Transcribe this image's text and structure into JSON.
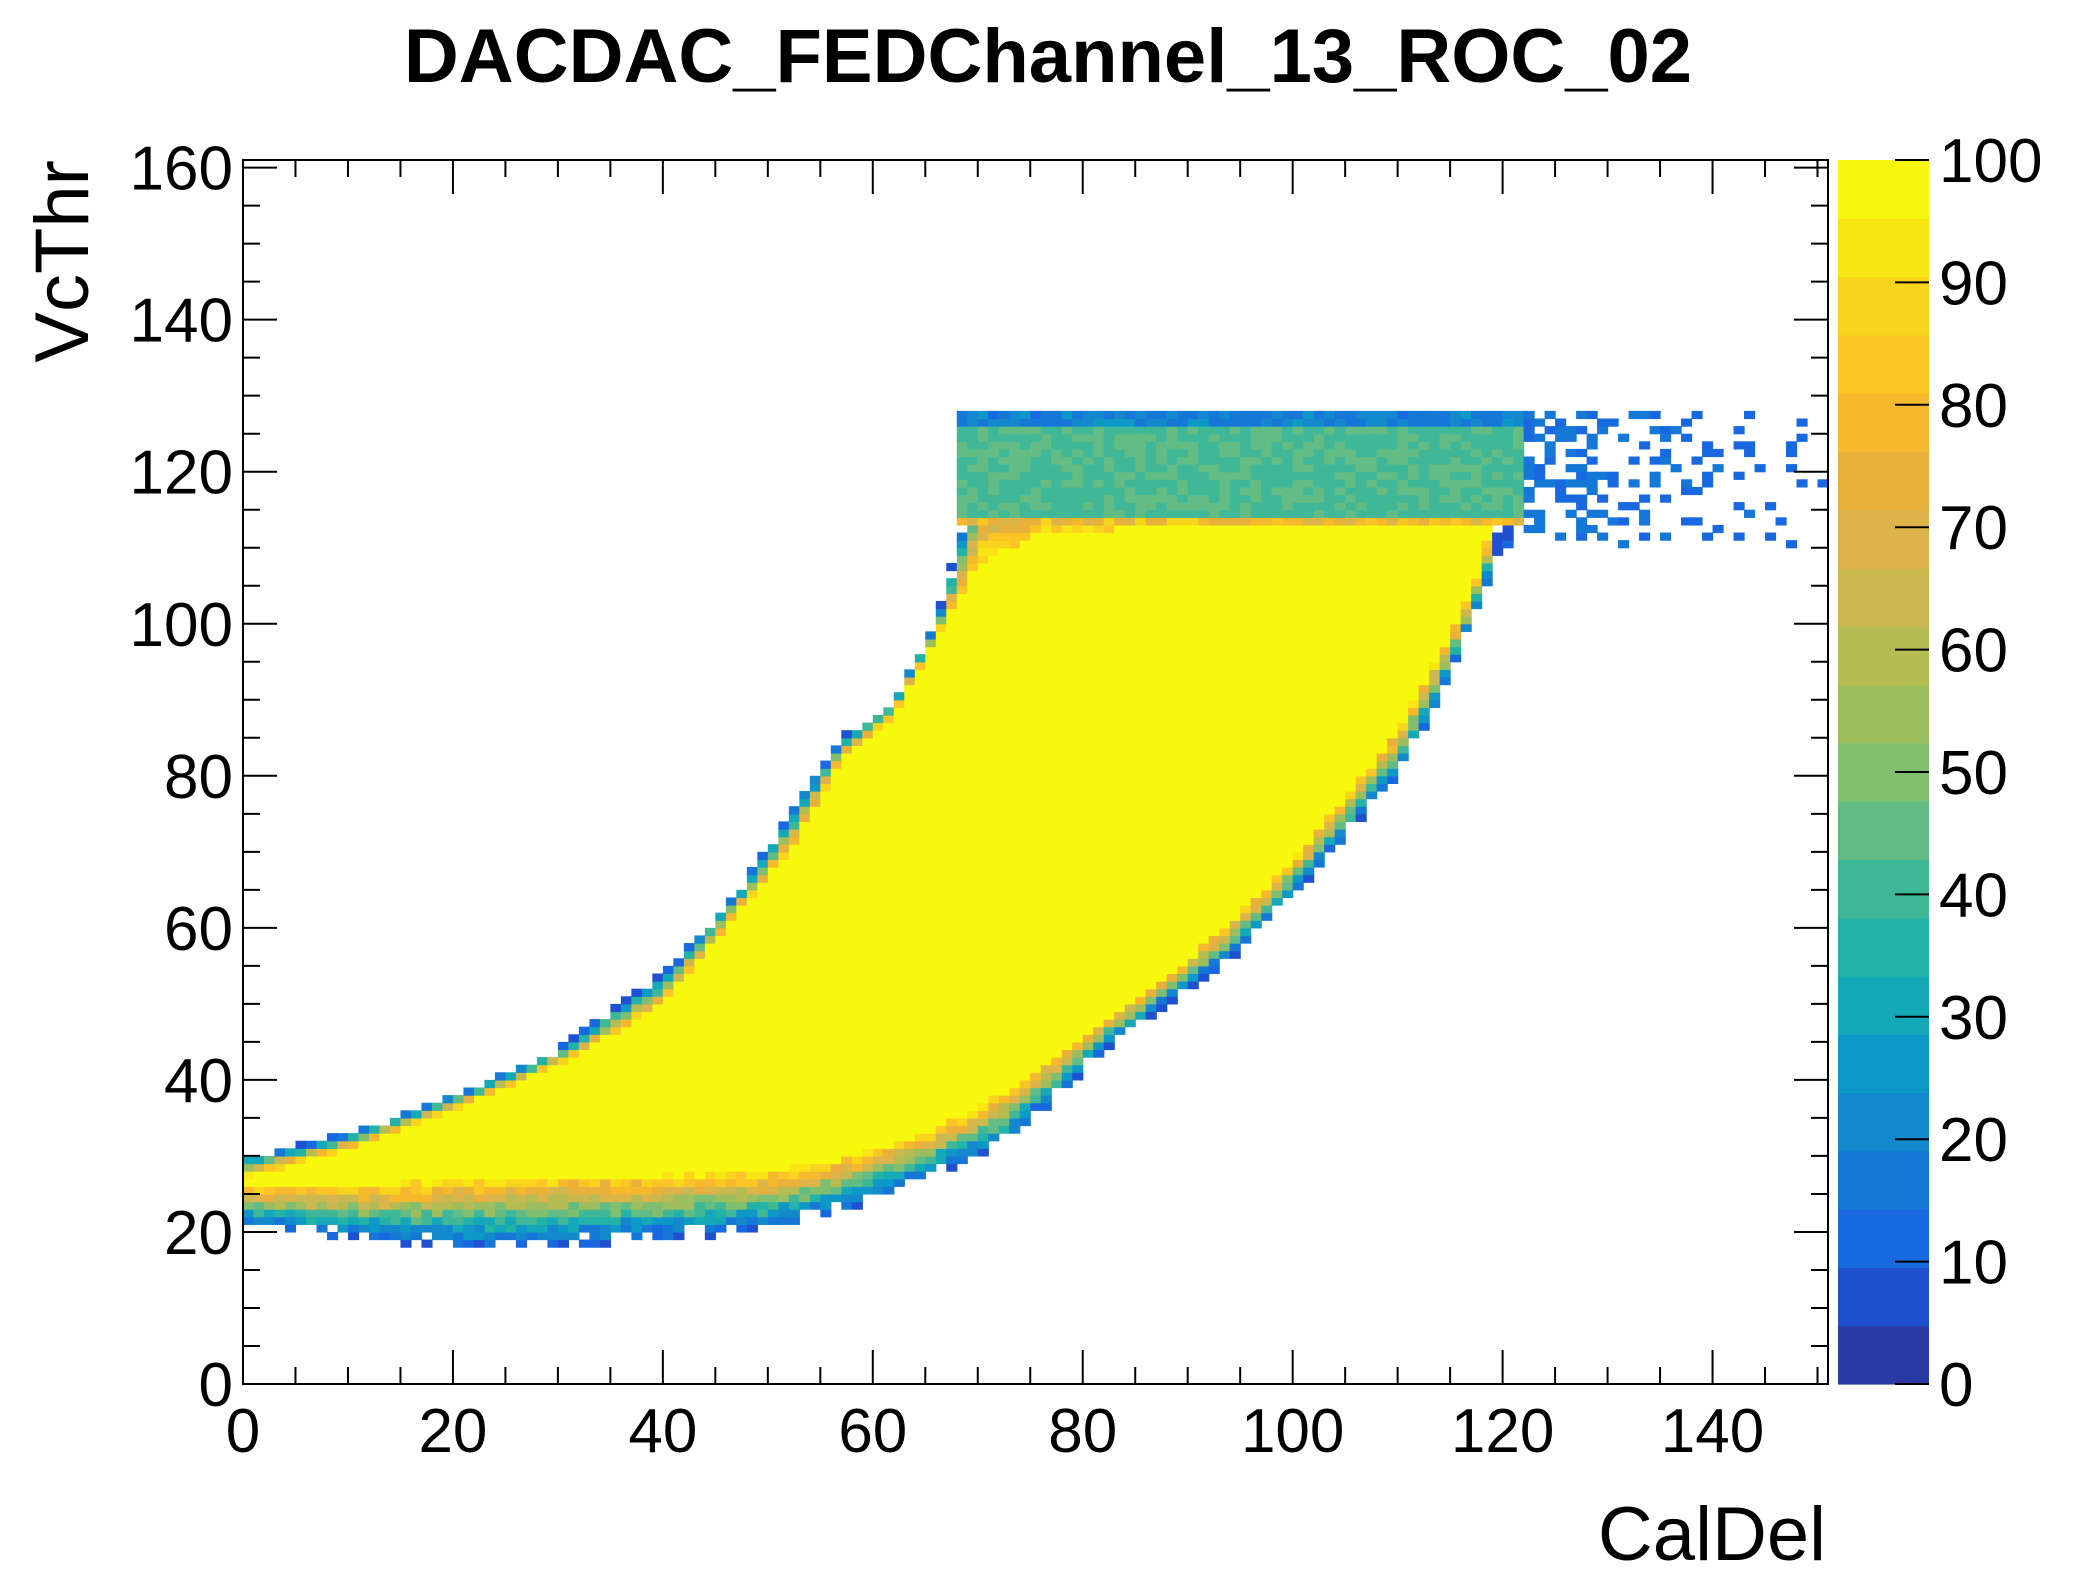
{
  "chart_data": {
    "type": "heatmap",
    "title": "DACDAC_FEDChannel_13_ROC_02",
    "xlabel": "CalDel",
    "ylabel": "VcThr",
    "xlim": [
      0,
      151
    ],
    "ylim": [
      0,
      161
    ],
    "x_ticks": [
      "0",
      "20",
      "40",
      "60",
      "80",
      "100",
      "120",
      "140"
    ],
    "y_ticks": [
      "0",
      "20",
      "40",
      "60",
      "80",
      "100",
      "120",
      "140",
      "160"
    ],
    "z_ticks": [
      "0",
      "10",
      "20",
      "30",
      "40",
      "50",
      "60",
      "70",
      "80",
      "90",
      "100"
    ],
    "zlim": [
      0,
      100
    ],
    "bin_width": 1,
    "grid": false,
    "legend": "color scale at right",
    "palette": [
      "#2a3aa4",
      "#1e50d0",
      "#1868e0",
      "#1578d6",
      "#1488cc",
      "#0d98c8",
      "#15a8b8",
      "#23b2a8",
      "#40b898",
      "#62bc84",
      "#80be70",
      "#9cbe5e",
      "#b6bc52",
      "#ccb850",
      "#ddb44a",
      "#eab03c",
      "#f6b82c",
      "#fcc526",
      "#f8d41c",
      "#f8e614",
      "#f8f80e"
    ],
    "region": {
      "lower_edge_points": [
        [
          0,
          21
        ],
        [
          10,
          19
        ],
        [
          20,
          18
        ],
        [
          30,
          18
        ],
        [
          40,
          19
        ],
        [
          50,
          20
        ],
        [
          58,
          23
        ],
        [
          65,
          27
        ],
        [
          72,
          31
        ],
        [
          78,
          38
        ],
        [
          82,
          44
        ],
        [
          88,
          50
        ],
        [
          95,
          57
        ],
        [
          100,
          64
        ],
        [
          105,
          72
        ],
        [
          110,
          80
        ],
        [
          114,
          90
        ],
        [
          117,
          100
        ],
        [
          120,
          110
        ],
        [
          122,
          112
        ]
      ],
      "upper_edge_points": [
        [
          0,
          30
        ],
        [
          10,
          33
        ],
        [
          20,
          38
        ],
        [
          30,
          44
        ],
        [
          40,
          54
        ],
        [
          46,
          63
        ],
        [
          52,
          75
        ],
        [
          57,
          85
        ],
        [
          62,
          90
        ],
        [
          66,
          100
        ],
        [
          68,
          110
        ],
        [
          70,
          123
        ],
        [
          80,
          128
        ],
        [
          100,
          128
        ],
        [
          120,
          128
        ],
        [
          130,
          127
        ],
        [
          145,
          124
        ]
      ],
      "core_lower_points": [
        [
          0,
          26
        ],
        [
          10,
          26
        ],
        [
          20,
          27
        ],
        [
          30,
          27.5
        ],
        [
          40,
          27.5
        ],
        [
          50,
          28
        ],
        [
          58,
          30
        ],
        [
          65,
          33
        ],
        [
          72,
          38
        ],
        [
          78,
          44
        ],
        [
          84,
          50
        ],
        [
          90,
          56
        ],
        [
          95,
          62
        ],
        [
          100,
          69
        ],
        [
          105,
          77
        ],
        [
          110,
          86
        ],
        [
          114,
          96
        ],
        [
          117,
          104
        ],
        [
          119,
          113
        ]
      ],
      "core_upper_points": [
        [
          0,
          27
        ],
        [
          10,
          31
        ],
        [
          20,
          36
        ],
        [
          30,
          42
        ],
        [
          40,
          50
        ],
        [
          46,
          60
        ],
        [
          52,
          70
        ],
        [
          57,
          82
        ],
        [
          62,
          88
        ],
        [
          66,
          98
        ],
        [
          70,
          108
        ],
        [
          76,
          112
        ],
        [
          90,
          113
        ],
        [
          105,
          113
        ],
        [
          118,
          113
        ]
      ],
      "plateau": {
        "x_range": [
          68,
          122
        ],
        "y_range": [
          113,
          128
        ],
        "value": 42
      },
      "fringe_band": {
        "x_range": [
          122,
          151
        ],
        "y_range": [
          110,
          128
        ],
        "value": 10
      }
    }
  }
}
